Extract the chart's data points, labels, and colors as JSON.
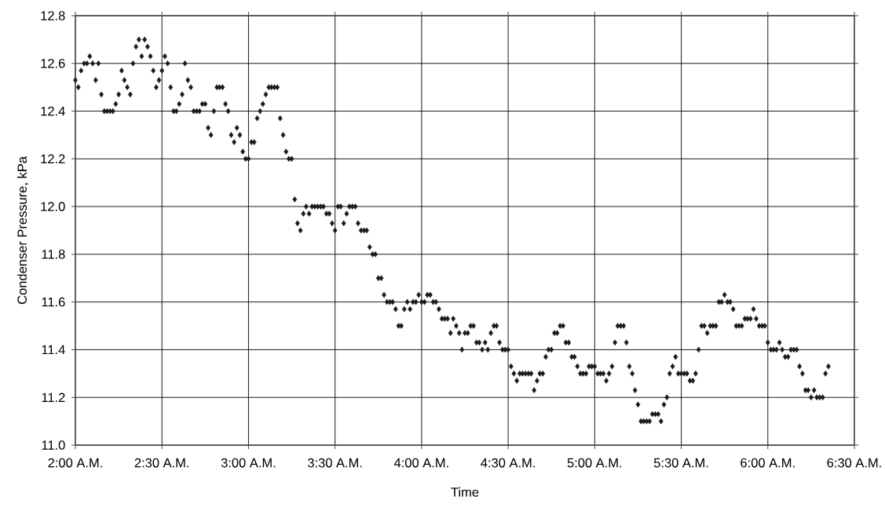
{
  "chart_data": {
    "type": "scatter",
    "xlabel": "Time",
    "ylabel": "Condenser Pressure, kPa",
    "marker": "diamond",
    "grid": true,
    "color": "#1a1a1a",
    "xlim": [
      2,
      6.5
    ],
    "ylim": [
      11,
      12.8
    ],
    "xticks": [
      {
        "value": 2,
        "label": "2:00 A.M."
      },
      {
        "value": 2.5,
        "label": "2:30 A.M."
      },
      {
        "value": 3,
        "label": "3:00 A.M."
      },
      {
        "value": 3.5,
        "label": "3:30 A.M."
      },
      {
        "value": 4,
        "label": "4:00 A.M."
      },
      {
        "value": 4.5,
        "label": "4:30 A.M."
      },
      {
        "value": 5,
        "label": "5:00 A.M."
      },
      {
        "value": 5.5,
        "label": "5:30 A.M."
      },
      {
        "value": 6,
        "label": "6:00 A.M."
      },
      {
        "value": 6.5,
        "label": "6:30 A.M."
      }
    ],
    "yticks": [
      {
        "value": 11,
        "label": "11.0"
      },
      11.2,
      11.4,
      11.6,
      11.8,
      {
        "value": 12,
        "label": "12.0"
      },
      12.2,
      12.4,
      12.6,
      12.8
    ],
    "x": [
      2,
      2.017,
      2.033,
      2.05,
      2.067,
      2.083,
      2.1,
      2.117,
      2.133,
      2.15,
      2.167,
      2.183,
      2.2,
      2.217,
      2.233,
      2.25,
      2.267,
      2.283,
      2.3,
      2.317,
      2.333,
      2.35,
      2.367,
      2.383,
      2.4,
      2.417,
      2.433,
      2.45,
      2.467,
      2.483,
      2.5,
      2.517,
      2.533,
      2.55,
      2.567,
      2.583,
      2.6,
      2.617,
      2.633,
      2.65,
      2.667,
      2.683,
      2.7,
      2.717,
      2.733,
      2.75,
      2.767,
      2.783,
      2.8,
      2.817,
      2.833,
      2.85,
      2.867,
      2.883,
      2.9,
      2.917,
      2.933,
      2.95,
      2.967,
      2.983,
      3,
      3.017,
      3.033,
      3.05,
      3.067,
      3.083,
      3.1,
      3.117,
      3.133,
      3.15,
      3.167,
      3.183,
      3.2,
      3.217,
      3.233,
      3.25,
      3.267,
      3.283,
      3.3,
      3.317,
      3.333,
      3.35,
      3.367,
      3.383,
      3.4,
      3.417,
      3.433,
      3.45,
      3.467,
      3.483,
      3.5,
      3.517,
      3.533,
      3.55,
      3.567,
      3.583,
      3.6,
      3.617,
      3.633,
      3.65,
      3.667,
      3.683,
      3.7,
      3.717,
      3.733,
      3.75,
      3.767,
      3.783,
      3.8,
      3.817,
      3.833,
      3.85,
      3.867,
      3.883,
      3.9,
      3.917,
      3.933,
      3.95,
      3.967,
      3.983,
      4,
      4.017,
      4.033,
      4.05,
      4.067,
      4.083,
      4.1,
      4.117,
      4.133,
      4.15,
      4.167,
      4.183,
      4.2,
      4.217,
      4.233,
      4.25,
      4.267,
      4.283,
      4.3,
      4.317,
      4.333,
      4.35,
      4.367,
      4.383,
      4.4,
      4.417,
      4.433,
      4.45,
      4.467,
      4.483,
      4.5,
      4.517,
      4.533,
      4.55,
      4.567,
      4.583,
      4.6,
      4.617,
      4.633,
      4.65,
      4.667,
      4.683,
      4.7,
      4.717,
      4.733,
      4.75,
      4.767,
      4.783,
      4.8,
      4.817,
      4.833,
      4.85,
      4.867,
      4.883,
      4.9,
      4.917,
      4.933,
      4.95,
      4.967,
      4.983,
      5,
      5.017,
      5.033,
      5.05,
      5.067,
      5.083,
      5.1,
      5.117,
      5.133,
      5.15,
      5.167,
      5.183,
      5.2,
      5.217,
      5.233,
      5.25,
      5.267,
      5.283,
      5.3,
      5.317,
      5.333,
      5.35,
      5.367,
      5.383,
      5.4,
      5.417,
      5.433,
      5.45,
      5.467,
      5.483,
      5.5,
      5.517,
      5.533,
      5.55,
      5.567,
      5.583,
      5.6,
      5.617,
      5.633,
      5.65,
      5.667,
      5.683,
      5.7,
      5.717,
      5.733,
      5.75,
      5.767,
      5.783,
      5.8,
      5.817,
      5.833,
      5.85,
      5.867,
      5.883,
      5.9,
      5.917,
      5.933,
      5.95,
      5.967,
      5.983,
      6,
      6.017,
      6.033,
      6.05,
      6.067,
      6.083,
      6.1,
      6.117,
      6.133,
      6.15,
      6.167,
      6.183,
      6.2,
      6.217,
      6.233,
      6.25,
      6.267,
      6.283,
      6.3,
      6.317,
      6.333,
      6.35
    ],
    "values": [
      12.53,
      12.5,
      12.57,
      12.6,
      12.6,
      12.63,
      12.6,
      12.53,
      12.6,
      12.47,
      12.4,
      12.4,
      12.4,
      12.4,
      12.43,
      12.47,
      12.57,
      12.53,
      12.5,
      12.47,
      12.6,
      12.67,
      12.7,
      12.63,
      12.7,
      12.67,
      12.63,
      12.57,
      12.5,
      12.53,
      12.57,
      12.63,
      12.6,
      12.5,
      12.4,
      12.4,
      12.43,
      12.47,
      12.6,
      12.53,
      12.5,
      12.4,
      12.4,
      12.4,
      12.43,
      12.43,
      12.33,
      12.3,
      12.4,
      12.5,
      12.5,
      12.5,
      12.43,
      12.4,
      12.3,
      12.27,
      12.33,
      12.3,
      12.23,
      12.2,
      12.2,
      12.27,
      12.27,
      12.37,
      12.4,
      12.43,
      12.47,
      12.5,
      12.5,
      12.5,
      12.5,
      12.37,
      12.3,
      12.23,
      12.2,
      12.2,
      12.03,
      11.93,
      11.9,
      11.97,
      12.0,
      11.97,
      12.0,
      12.0,
      12.0,
      12.0,
      12.0,
      11.97,
      11.97,
      11.93,
      11.9,
      12.0,
      12.0,
      11.93,
      11.97,
      12.0,
      12.0,
      12.0,
      11.93,
      11.9,
      11.9,
      11.9,
      11.83,
      11.8,
      11.8,
      11.7,
      11.7,
      11.63,
      11.6,
      11.6,
      11.6,
      11.57,
      11.5,
      11.5,
      11.57,
      11.6,
      11.57,
      11.6,
      11.6,
      11.63,
      11.6,
      11.6,
      11.63,
      11.63,
      11.6,
      11.6,
      11.57,
      11.53,
      11.53,
      11.53,
      11.47,
      11.53,
      11.5,
      11.47,
      11.4,
      11.47,
      11.47,
      11.5,
      11.5,
      11.43,
      11.43,
      11.4,
      11.43,
      11.4,
      11.47,
      11.5,
      11.5,
      11.43,
      11.4,
      11.4,
      11.4,
      11.33,
      11.3,
      11.27,
      11.3,
      11.3,
      11.3,
      11.3,
      11.3,
      11.23,
      11.27,
      11.3,
      11.3,
      11.37,
      11.4,
      11.4,
      11.47,
      11.47,
      11.5,
      11.5,
      11.43,
      11.43,
      11.37,
      11.37,
      11.33,
      11.3,
      11.3,
      11.3,
      11.33,
      11.33,
      11.33,
      11.3,
      11.3,
      11.3,
      11.27,
      11.3,
      11.33,
      11.43,
      11.5,
      11.5,
      11.5,
      11.43,
      11.33,
      11.3,
      11.23,
      11.17,
      11.1,
      11.1,
      11.1,
      11.1,
      11.13,
      11.13,
      11.13,
      11.1,
      11.17,
      11.2,
      11.3,
      11.33,
      11.37,
      11.3,
      11.3,
      11.3,
      11.3,
      11.27,
      11.27,
      11.3,
      11.4,
      11.5,
      11.5,
      11.47,
      11.5,
      11.5,
      11.5,
      11.6,
      11.6,
      11.63,
      11.6,
      11.6,
      11.57,
      11.5,
      11.5,
      11.5,
      11.53,
      11.53,
      11.53,
      11.57,
      11.53,
      11.5,
      11.5,
      11.5,
      11.43,
      11.4,
      11.4,
      11.4,
      11.43,
      11.4,
      11.37,
      11.37,
      11.4,
      11.4,
      11.4,
      11.33,
      11.3,
      11.23,
      11.23,
      11.2,
      11.23,
      11.2,
      11.2,
      11.2,
      11.3,
      11.33
    ]
  }
}
